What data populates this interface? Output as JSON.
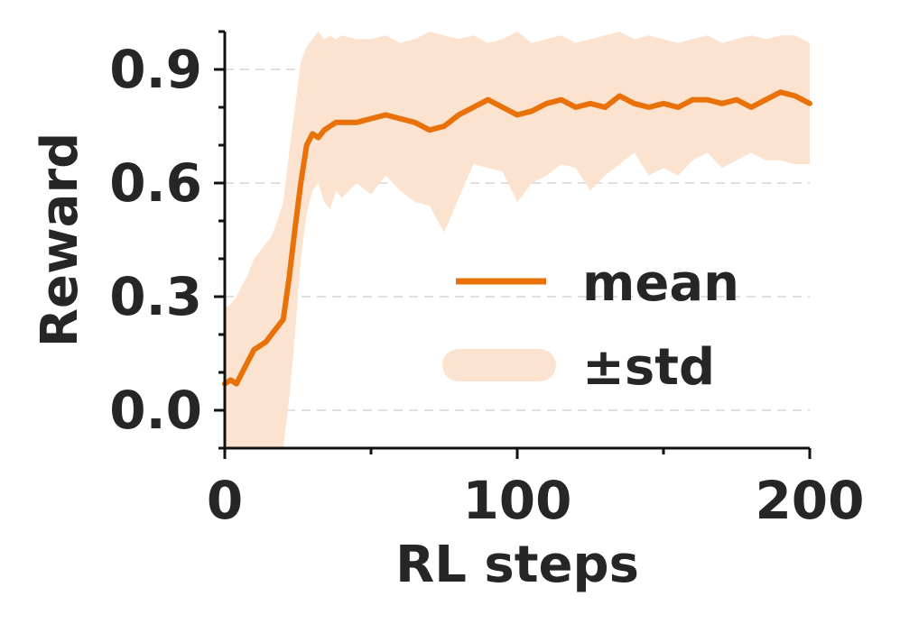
{
  "chart_data": {
    "type": "line",
    "xlabel": "RL steps",
    "ylabel": "Reward",
    "xlim": [
      0,
      200
    ],
    "ylim": [
      -0.1,
      1.0
    ],
    "xticks": [
      0,
      100,
      200
    ],
    "xtick_labels": [
      "0",
      "100",
      "200"
    ],
    "xminor_ticks": [
      50,
      150
    ],
    "yticks": [
      0.0,
      0.3,
      0.6,
      0.9
    ],
    "ytick_labels": [
      "0.0",
      "0.3",
      "0.6",
      "0.9"
    ],
    "grid": "horizontal dashed",
    "legend_position": "center-right",
    "colors": {
      "mean": "#e8710a",
      "band": "#fbe3cf"
    },
    "series": [
      {
        "name": "mean",
        "x": [
          0,
          2,
          4,
          6,
          8,
          10,
          12,
          14,
          16,
          18,
          20,
          22,
          24,
          26,
          28,
          30,
          32,
          34,
          36,
          38,
          40,
          45,
          50,
          55,
          60,
          65,
          70,
          75,
          80,
          85,
          90,
          95,
          100,
          105,
          110,
          115,
          120,
          125,
          130,
          135,
          140,
          145,
          150,
          155,
          160,
          165,
          170,
          175,
          180,
          185,
          190,
          195,
          200
        ],
        "y": [
          0.07,
          0.08,
          0.07,
          0.1,
          0.13,
          0.16,
          0.17,
          0.18,
          0.2,
          0.22,
          0.24,
          0.35,
          0.48,
          0.6,
          0.7,
          0.73,
          0.72,
          0.74,
          0.75,
          0.76,
          0.76,
          0.76,
          0.77,
          0.78,
          0.77,
          0.76,
          0.74,
          0.75,
          0.78,
          0.8,
          0.82,
          0.8,
          0.78,
          0.79,
          0.81,
          0.82,
          0.8,
          0.81,
          0.8,
          0.83,
          0.81,
          0.8,
          0.81,
          0.8,
          0.82,
          0.82,
          0.81,
          0.82,
          0.8,
          0.82,
          0.84,
          0.83,
          0.81
        ]
      },
      {
        "name": "±std",
        "x": [
          0,
          2,
          4,
          6,
          8,
          10,
          12,
          14,
          16,
          18,
          20,
          22,
          24,
          26,
          28,
          30,
          32,
          34,
          36,
          38,
          40,
          45,
          50,
          55,
          60,
          65,
          70,
          75,
          80,
          85,
          90,
          95,
          100,
          105,
          110,
          115,
          120,
          125,
          130,
          135,
          140,
          145,
          150,
          155,
          160,
          165,
          170,
          175,
          180,
          185,
          190,
          195,
          200
        ],
        "lower": [
          -0.15,
          -0.15,
          -0.15,
          -0.15,
          -0.15,
          -0.15,
          -0.15,
          -0.15,
          -0.15,
          -0.15,
          -0.12,
          0.03,
          0.2,
          0.4,
          0.52,
          0.58,
          0.6,
          0.55,
          0.53,
          0.58,
          0.56,
          0.6,
          0.57,
          0.62,
          0.58,
          0.55,
          0.54,
          0.47,
          0.56,
          0.65,
          0.64,
          0.63,
          0.55,
          0.6,
          0.62,
          0.65,
          0.64,
          0.58,
          0.62,
          0.65,
          0.68,
          0.62,
          0.64,
          0.62,
          0.66,
          0.68,
          0.64,
          0.66,
          0.68,
          0.66,
          0.66,
          0.65,
          0.65
        ],
        "upper": [
          0.27,
          0.28,
          0.3,
          0.33,
          0.36,
          0.4,
          0.42,
          0.44,
          0.46,
          0.5,
          0.55,
          0.68,
          0.8,
          0.92,
          0.96,
          0.98,
          1.0,
          0.98,
          0.99,
          0.98,
          0.99,
          0.98,
          0.98,
          0.99,
          0.97,
          0.98,
          1.0,
          0.99,
          0.98,
          0.99,
          0.97,
          0.98,
          1.0,
          0.97,
          0.98,
          0.99,
          0.97,
          0.98,
          0.99,
          1.0,
          0.98,
          0.99,
          0.98,
          0.97,
          0.98,
          0.99,
          0.97,
          0.98,
          0.99,
          0.98,
          0.99,
          0.99,
          0.97
        ]
      }
    ]
  }
}
